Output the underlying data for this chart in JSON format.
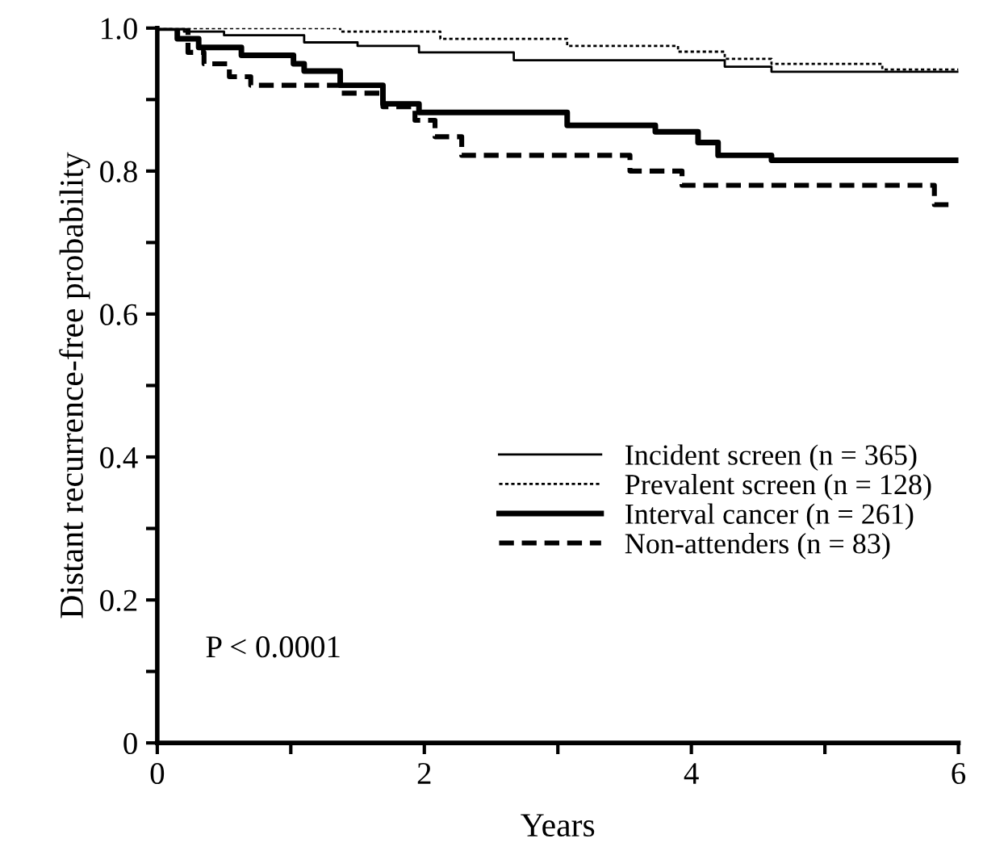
{
  "chart_data": {
    "type": "step",
    "xlabel": "Years",
    "ylabel": "Distant recurrence-free probability",
    "xlim": [
      0,
      6
    ],
    "ylim": [
      0,
      1
    ],
    "xticks": [
      0,
      {
        "value": 1,
        "label": null
      },
      2,
      {
        "value": 3,
        "label": null
      },
      4,
      {
        "value": 5,
        "label": null
      },
      6
    ],
    "yticks": [
      0,
      {
        "value": 0.1,
        "label": null
      },
      0.2,
      {
        "value": 0.3,
        "label": null
      },
      0.4,
      {
        "value": 0.5,
        "label": null
      },
      0.6,
      {
        "value": 0.7,
        "label": null
      },
      0.8,
      {
        "value": 0.9,
        "label": null
      },
      {
        "value": 1,
        "label": "1.0"
      }
    ],
    "grid": false,
    "legend": "bottom right",
    "marker": "none",
    "annotations": [
      "P < 0.0001"
    ],
    "series": [
      {
        "name": "Incident screen (n = 365)",
        "color": "#000000",
        "line_style": "solid",
        "x": [
          0,
          0.2,
          0.5,
          1.1,
          1.5,
          1.96,
          2.67,
          4.25,
          4.6,
          6
        ],
        "values": [
          1,
          0.995,
          0.99,
          0.98,
          0.975,
          0.966,
          0.955,
          0.946,
          0.939,
          0.939
        ]
      },
      {
        "name": "Prevalent screen (n = 128)",
        "color": "#000000",
        "line_style": "dotted",
        "x": [
          0,
          1.37,
          2.12,
          3.07,
          3.9,
          4.25,
          4.6,
          5.43,
          6
        ],
        "values": [
          1,
          0.995,
          0.985,
          0.975,
          0.967,
          0.957,
          0.95,
          0.942,
          0.942
        ]
      },
      {
        "name": "Interval cancer (n = 261)",
        "color": "#000000",
        "line_style": "solid",
        "x": [
          0,
          0.15,
          0.31,
          0.63,
          1.02,
          1.1,
          1.37,
          1.69,
          1.96,
          3.07,
          3.73,
          4.05,
          4.2,
          4.6,
          6
        ],
        "values": [
          1,
          0.985,
          0.973,
          0.962,
          0.95,
          0.94,
          0.92,
          0.894,
          0.882,
          0.864,
          0.855,
          0.84,
          0.822,
          0.815,
          0.815
        ]
      },
      {
        "name": "Non-attenders (n = 83)",
        "color": "#000000",
        "line_style": "dashed",
        "x": [
          0,
          0.23,
          0.35,
          0.54,
          0.7,
          1.37,
          1.69,
          1.93,
          2.08,
          2.28,
          3.54,
          3.93,
          5.82,
          5.95
        ],
        "values": [
          1,
          0.966,
          0.95,
          0.932,
          0.92,
          0.909,
          0.89,
          0.871,
          0.848,
          0.822,
          0.8,
          0.78,
          0.753,
          0.753
        ]
      }
    ]
  }
}
